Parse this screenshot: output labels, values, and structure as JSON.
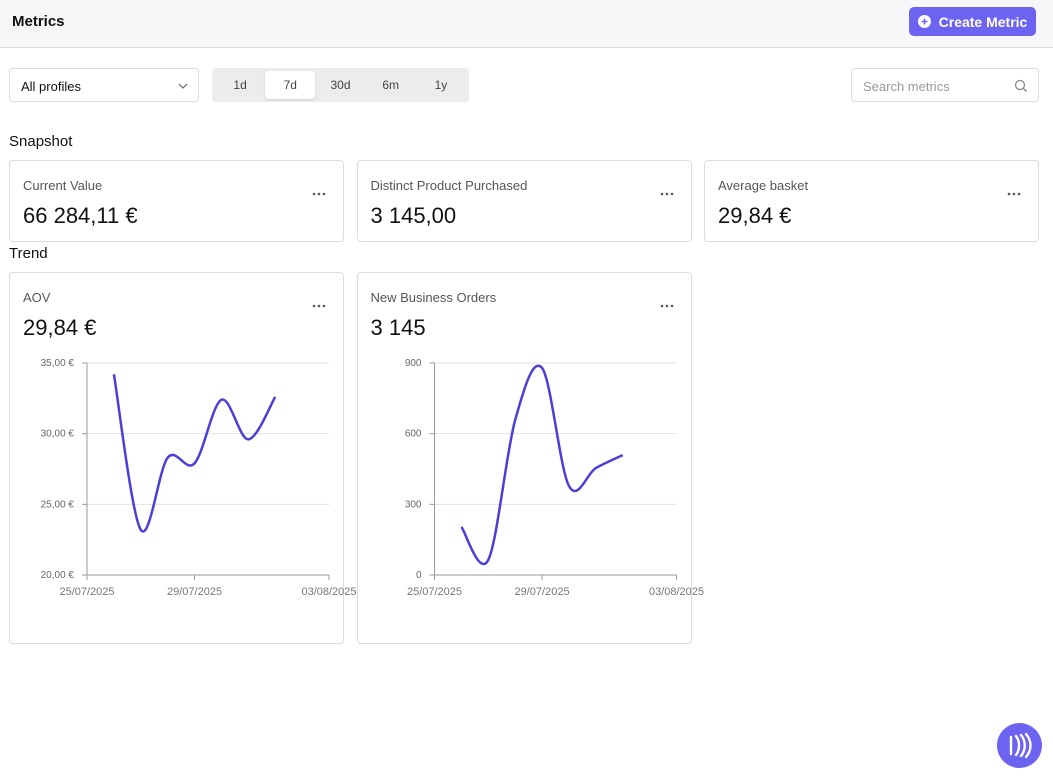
{
  "header": {
    "title": "Metrics",
    "button": "Create Metric"
  },
  "filters": {
    "profile": "All profiles",
    "ranges": [
      "1d",
      "7d",
      "30d",
      "6m",
      "1y"
    ],
    "selected": "7d",
    "search_placeholder": "Search metrics"
  },
  "snapshot": {
    "title": "Snapshot",
    "cards": [
      {
        "label": "Current Value",
        "value": "66 284,11 €"
      },
      {
        "label": "Distinct Product Purchased",
        "value": "3 145,00"
      },
      {
        "label": "Average basket",
        "value": "29,84 €"
      }
    ]
  },
  "trend": {
    "title": "Trend",
    "cards": [
      {
        "label": "AOV",
        "value": "29,84 €",
        "chart_data": {
          "type": "line",
          "x": [
            "26/07/2025",
            "27/07/2025",
            "28/07/2025",
            "29/07/2025",
            "30/07/2025",
            "31/07/2025",
            "01/08/2025"
          ],
          "series": [
            {
              "color": "#4b3fd6",
              "values": [
                34.2,
                23.2,
                28.3,
                27.9,
                32.4,
                29.6,
                32.6
              ]
            }
          ],
          "xlim": [
            "25/07/2025",
            "03/08/2025"
          ],
          "xticks": [
            "25/07/2025",
            "29/07/2025",
            "03/08/2025"
          ],
          "ylim": [
            20,
            35
          ],
          "yticks": [
            {
              "value": 20,
              "label": "20,00 €"
            },
            {
              "value": 25,
              "label": "25,00 €"
            },
            {
              "value": 30,
              "label": "30,00 €"
            },
            {
              "value": 35,
              "label": "35,00 €"
            }
          ],
          "grid": true
        }
      },
      {
        "label": "New Business Orders",
        "value": "3 145",
        "chart_data": {
          "type": "line",
          "x": [
            "26/07/2025",
            "27/07/2025",
            "28/07/2025",
            "29/07/2025",
            "30/07/2025",
            "31/07/2025",
            "01/08/2025"
          ],
          "series": [
            {
              "color": "#4b3fd6",
              "values": [
                204,
                64,
                658,
                879,
                378,
                454,
                509
              ]
            }
          ],
          "xlim": [
            "25/07/2025",
            "03/08/2025"
          ],
          "xticks": [
            "25/07/2025",
            "29/07/2025",
            "03/08/2025"
          ],
          "ylim": [
            0,
            900
          ],
          "yticks": [
            0,
            300,
            600,
            900
          ],
          "grid": true
        }
      }
    ]
  }
}
